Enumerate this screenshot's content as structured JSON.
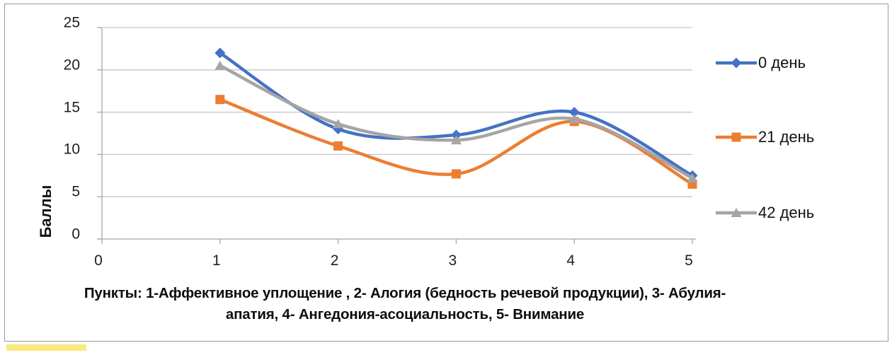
{
  "figure": {
    "caption_lines": [
      "Пункты: 1-Аффективное уплощение , 2- Алогия (бедность речевой продукции), 3- Абулия-",
      "апатия, 4-  Ангедония-асоциальность, 5-  Внимание"
    ]
  },
  "chart_data": {
    "type": "line",
    "smooth": true,
    "title": "",
    "xlabel": "",
    "ylabel": "Баллы",
    "x": [
      1,
      2,
      3,
      4,
      5
    ],
    "x_axis_ticks": [
      "0",
      "1",
      "2",
      "3",
      "4",
      "5"
    ],
    "y_axis_ticks": [
      0,
      5,
      10,
      15,
      20,
      25
    ],
    "xlim": [
      0,
      5
    ],
    "ylim": [
      0,
      25
    ],
    "grid": true,
    "legend_position": "right",
    "series": [
      {
        "name": "0 день",
        "color": "#4472C4",
        "marker": "diamond",
        "values": [
          22.0,
          13.0,
          12.3,
          15.0,
          7.5
        ]
      },
      {
        "name": "21 день",
        "color": "#ED7D31",
        "marker": "square",
        "values": [
          16.5,
          11.0,
          7.7,
          13.9,
          6.5
        ]
      },
      {
        "name": "42 день",
        "color": "#A5A5A5",
        "marker": "triangle",
        "values": [
          20.5,
          13.6,
          11.7,
          14.2,
          7.2
        ]
      }
    ],
    "caption": "Пункты: 1-Аффективное уплощение , 2- Алогия (бедность речевой продукции), 3- Абулия-апатия, 4- Ангедония-асоциальность, 5- Внимание"
  },
  "colors": {
    "gridline": "#C6C6C6",
    "axis": "#A6A6A6",
    "frame_border": "#9A9A9A",
    "tick_text": "#1F1F1F",
    "highlight_yellow": "#F9E97F"
  }
}
